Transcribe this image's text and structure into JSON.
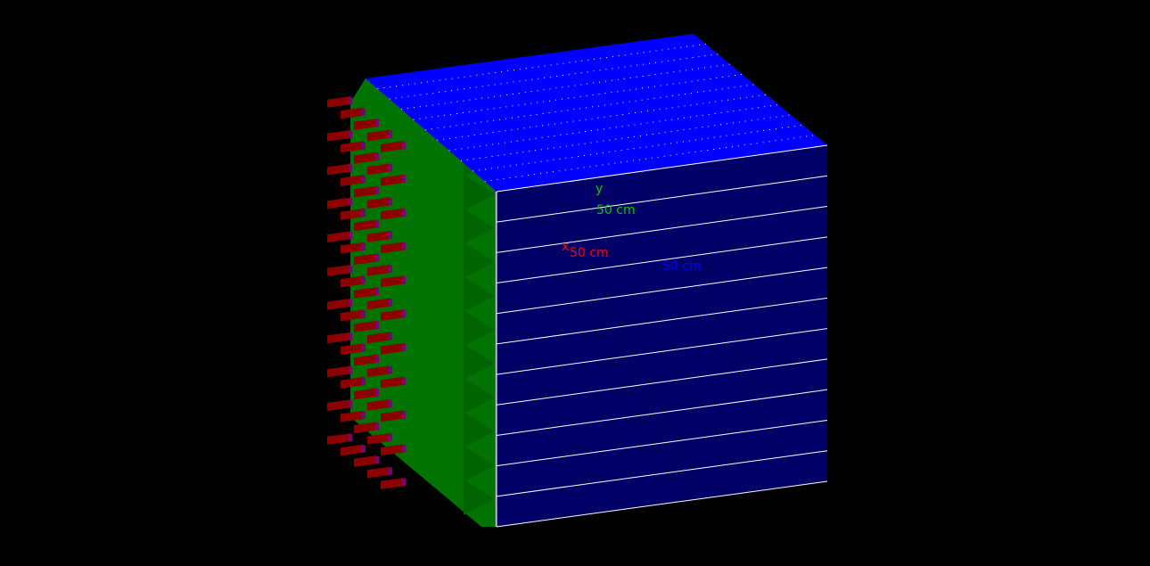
{
  "scene": {
    "background_color": "#000000",
    "colors": {
      "top_face": "#0000ff",
      "front_face": "#000066",
      "side_panel": "#007300",
      "side_panel_edge": "#808080",
      "connector_body": "#8c0000",
      "connector_cap": "#7a007a",
      "slab_lines": "#ffffff"
    },
    "front_slab_count": 11,
    "top_slab_count": 11,
    "connector_columns": 5,
    "connector_rows": 11
  },
  "axes": {
    "y_axis": {
      "letter": "y",
      "length_label": "50 cm",
      "color": "#00cc00"
    },
    "x_axis": {
      "letter": "x",
      "length_label": "50 cm",
      "color": "#ff0000"
    },
    "z_axis": {
      "letter": "",
      "length_label": "50 cm",
      "color": "#0000ff"
    }
  }
}
